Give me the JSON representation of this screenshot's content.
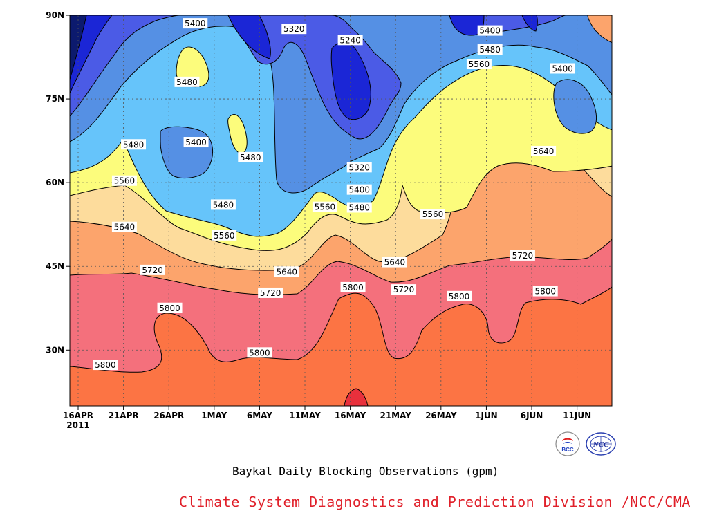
{
  "chart_data": {
    "type": "heatmap",
    "title": "Baykal Daily Blocking Observations (gpm)",
    "xlabel": "",
    "ylabel": "",
    "x_tick_labels": [
      "16APR",
      "21APR",
      "26APR",
      "1MAY",
      "6MAY",
      "11MAY",
      "16MAY",
      "21MAY",
      "26MAY",
      "1JUN",
      "6JUN",
      "11JUN"
    ],
    "x_year_label": "2011",
    "x_range_days": [
      0,
      58
    ],
    "y_tick_labels": [
      "90N",
      "75N",
      "60N",
      "45N",
      "30N"
    ],
    "y_tick_values": [
      90,
      75,
      60,
      45,
      30
    ],
    "ylim": [
      20,
      90
    ],
    "contour_interval": 80,
    "contour_levels": [
      5240,
      5320,
      5400,
      5480,
      5560,
      5640,
      5720,
      5800
    ],
    "level_colors": [
      "#0c1a6e",
      "#1b26d6",
      "#4b5be6",
      "#5590e4",
      "#66c4fa",
      "#fcfc7c",
      "#fddc9c",
      "#fca46c",
      "#fc7444",
      "#f4707c",
      "#e8303c"
    ],
    "grid": true,
    "contour_labels": [
      {
        "text": "5400",
        "day": 12.9,
        "lat": 88.5
      },
      {
        "text": "5320",
        "day": 23.8,
        "lat": 87.5
      },
      {
        "text": "5240",
        "day": 30.0,
        "lat": 85.5
      },
      {
        "text": "5400",
        "day": 45.4,
        "lat": 87.2
      },
      {
        "text": "5480",
        "day": 45.4,
        "lat": 83.8
      },
      {
        "text": "5560",
        "day": 44.2,
        "lat": 81.2
      },
      {
        "text": "5400",
        "day": 53.4,
        "lat": 80.4
      },
      {
        "text": "5480",
        "day": 12.0,
        "lat": 78.0
      },
      {
        "text": "5480",
        "day": 6.1,
        "lat": 66.8
      },
      {
        "text": "5400",
        "day": 13.0,
        "lat": 67.2
      },
      {
        "text": "5480",
        "day": 19.0,
        "lat": 64.5
      },
      {
        "text": "5320",
        "day": 31.0,
        "lat": 62.7
      },
      {
        "text": "5640",
        "day": 51.3,
        "lat": 65.6
      },
      {
        "text": "5560",
        "day": 5.1,
        "lat": 60.3
      },
      {
        "text": "5400",
        "day": 31.0,
        "lat": 58.7
      },
      {
        "text": "5480",
        "day": 16.0,
        "lat": 56.0
      },
      {
        "text": "5560",
        "day": 27.2,
        "lat": 55.6
      },
      {
        "text": "5480",
        "day": 31.0,
        "lat": 55.5
      },
      {
        "text": "5560",
        "day": 39.1,
        "lat": 54.3
      },
      {
        "text": "5640",
        "day": 5.1,
        "lat": 52.0
      },
      {
        "text": "5560",
        "day": 16.1,
        "lat": 50.5
      },
      {
        "text": "5640",
        "day": 34.9,
        "lat": 45.7
      },
      {
        "text": "5720",
        "day": 49.0,
        "lat": 46.9
      },
      {
        "text": "5720",
        "day": 8.2,
        "lat": 44.3
      },
      {
        "text": "5640",
        "day": 23.0,
        "lat": 44.0
      },
      {
        "text": "5720",
        "day": 21.2,
        "lat": 40.2
      },
      {
        "text": "5800",
        "day": 30.3,
        "lat": 41.2
      },
      {
        "text": "5720",
        "day": 35.9,
        "lat": 40.8
      },
      {
        "text": "5800",
        "day": 42.0,
        "lat": 39.6
      },
      {
        "text": "5800",
        "day": 51.5,
        "lat": 40.5
      },
      {
        "text": "5800",
        "day": 10.1,
        "lat": 37.5
      },
      {
        "text": "5800",
        "day": 20.0,
        "lat": 29.5
      },
      {
        "text": "5800",
        "day": 3.0,
        "lat": 27.3
      }
    ]
  },
  "footer": {
    "title": "Baykal Daily Blocking Observations (gpm)",
    "credit": "Climate System Diagnostics and Prediction Division /NCC/CMA",
    "logo_left_text": "BCC",
    "logo_right_text": "NCC"
  }
}
